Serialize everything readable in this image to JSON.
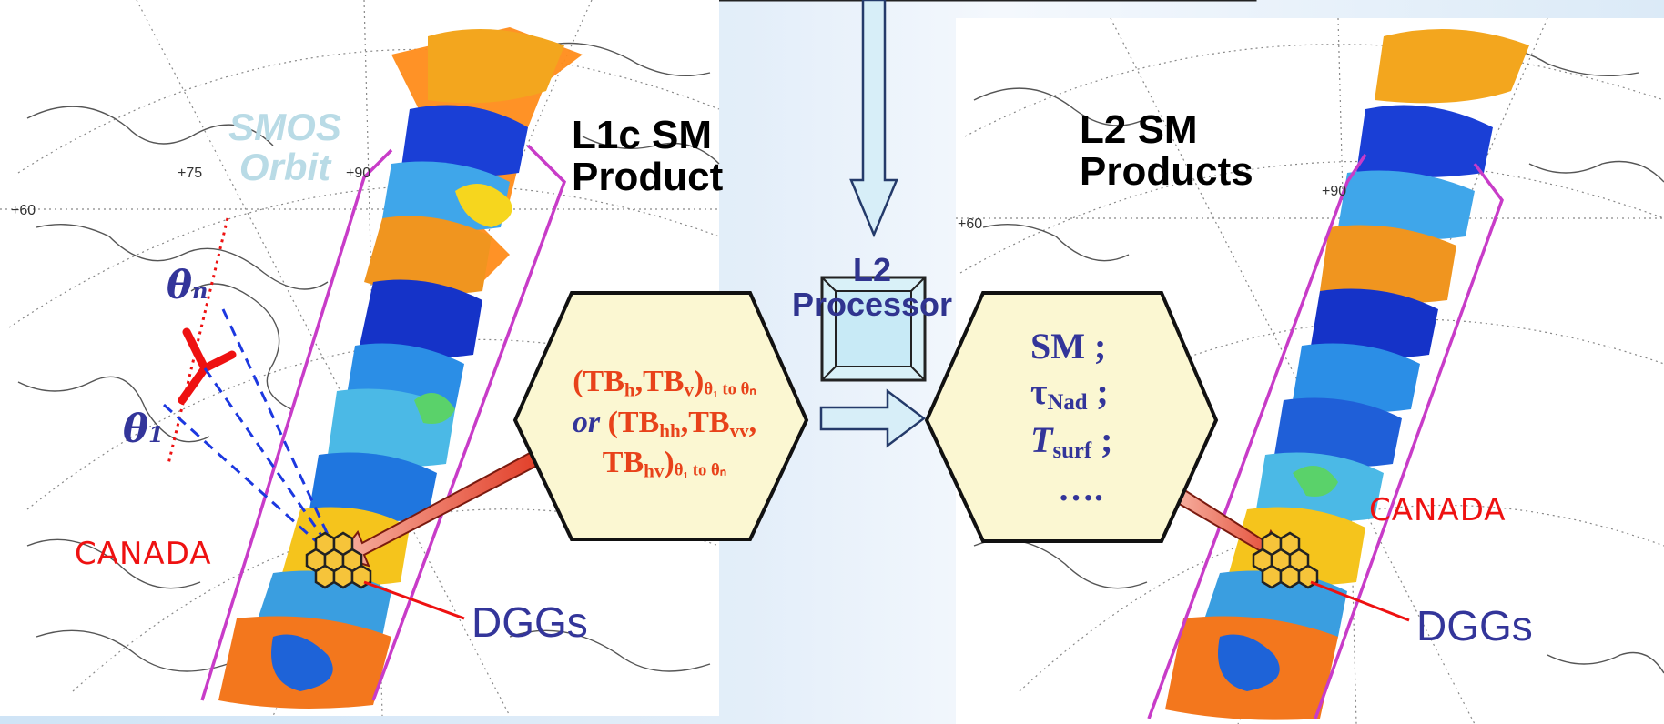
{
  "left_map": {
    "title_line1": "L1c SM",
    "title_line2": "Product",
    "orbit_label_line1": "SMOS",
    "orbit_label_line2": "Orbit",
    "theta_n": "θ",
    "theta_n_sub": "n",
    "theta_1": "θ",
    "theta_1_sub": "1",
    "region_label": "CANADA",
    "dgg_label": "DGGs",
    "graticule_labels": [
      "+75",
      "+90",
      "+60"
    ]
  },
  "processor": {
    "line1": "L2",
    "line2": "Processor"
  },
  "input_hex": {
    "tb": "TB",
    "h": "h",
    "v": "v",
    "hh": "hh",
    "vv": "vv",
    "hv": "hv",
    "range": "θ₁ to θₙ",
    "or": "or"
  },
  "output_hex": {
    "sm": "SM ;",
    "tau": "τ",
    "tau_sub": "Nad",
    "semicolon": " ;",
    "t": "T",
    "t_sub": "surf",
    "ellipsis": "…."
  },
  "right_map": {
    "title_line1": "L2 SM",
    "title_line2": "Products",
    "region_label": "CANADA",
    "dgg_label": "DGGs",
    "graticule_labels": [
      "+90",
      "+60"
    ]
  },
  "colors": {
    "swath_border": "#c83cc8",
    "hex_fill": "#fbf7d2",
    "input_text": "#e8421a",
    "output_text": "#33359a",
    "processor_text": "#30348f",
    "dgg_text": "#33359a",
    "canada_text": "#ee1111",
    "orbit_text": "#b9dbe6",
    "arrow_fill": "#d7eef8"
  }
}
